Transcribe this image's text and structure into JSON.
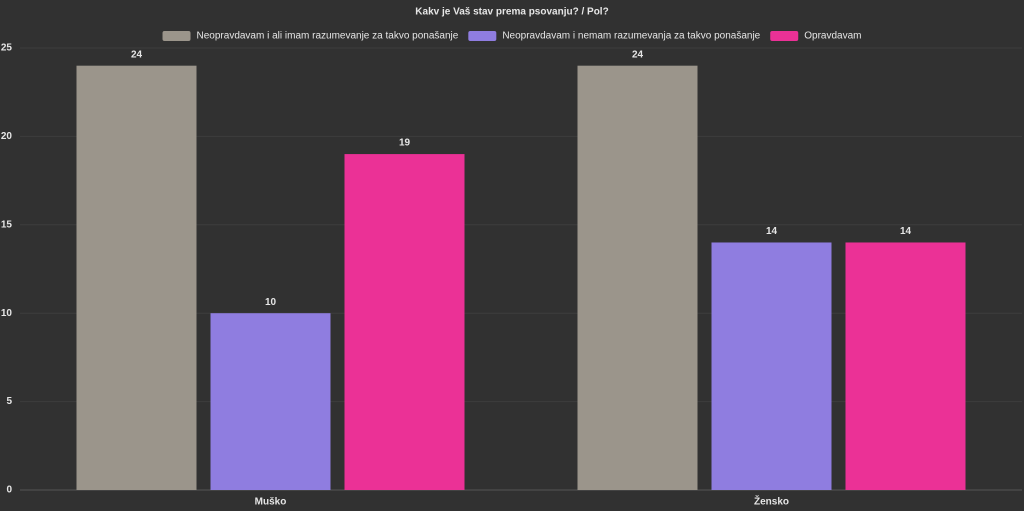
{
  "chart_data": {
    "type": "bar",
    "title": "Kakv je Vaš stav prema psovanju? / Pol?",
    "categories": [
      "Muško",
      "Žensko"
    ],
    "series": [
      {
        "name": "Neopravdavam i ali imam razumevanje za takvo ponašanje",
        "color": "#9b958b",
        "values": [
          24,
          24
        ]
      },
      {
        "name": "Neopravdavam i nemam razumevanja za takvo ponašanje",
        "color": "#8f7de0",
        "values": [
          10,
          14
        ]
      },
      {
        "name": "Opravdavam",
        "color": "#eb3196",
        "values": [
          19,
          14
        ]
      }
    ],
    "ylim": [
      0,
      25
    ],
    "yticks": [
      0,
      5,
      10,
      15,
      20,
      25
    ],
    "grid": true,
    "legend": "top"
  }
}
